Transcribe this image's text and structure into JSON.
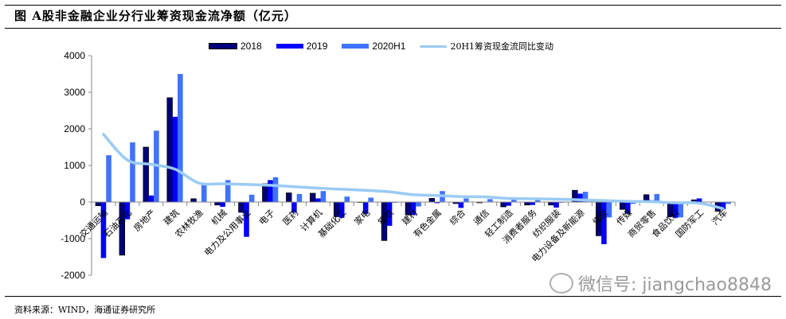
{
  "header": {
    "title": "图  A股非金融企业分行业筹资现金流净额（亿元）"
  },
  "footer": {
    "source": "资料来源：WIND，海通证券研究所"
  },
  "watermark": {
    "text": "微信号: jiangchao8848"
  },
  "colors": {
    "s2018": "#00007A",
    "s2019": "#0000FF",
    "s2020H1": "#3F72FF",
    "line": "#9ACBF5"
  },
  "legend": [
    "2018",
    "2019",
    "2020H1",
    "20H1筹资现金流同比变动"
  ],
  "chart_data": {
    "type": "bar",
    "title": "A股非金融企业分行业筹资现金流净额（亿元）",
    "xlabel": "",
    "ylabel": "",
    "ylim": [
      -2000,
      4000
    ],
    "yticks": [
      -2000,
      -1000,
      0,
      1000,
      2000,
      3000,
      4000
    ],
    "grid": false,
    "legend_position": "top",
    "categories": [
      "交通运输",
      "石油石化",
      "房地产",
      "建筑",
      "农林牧渔",
      "机械",
      "电力及公用事业",
      "电子",
      "医药",
      "计算机",
      "基础化工",
      "家电",
      "钢铁",
      "建材",
      "有色金属",
      "综合",
      "通信",
      "轻工制造",
      "消费者服务",
      "纺织服装",
      "电力设备及新能源",
      "煤炭",
      "传媒",
      "商贸零售",
      "食品饮料",
      "国防军工",
      "汽车"
    ],
    "series": [
      {
        "name": "2018",
        "type": "bar",
        "values": [
          -100,
          -1450,
          1500,
          2850,
          90,
          -80,
          -280,
          500,
          250,
          240,
          -400,
          0,
          -1050,
          -350,
          100,
          -40,
          -20,
          -130,
          -80,
          -80,
          320,
          -920,
          -200,
          200,
          -400,
          60,
          -250
        ]
      },
      {
        "name": "2019",
        "type": "bar",
        "values": [
          -1530,
          -470,
          180,
          2330,
          0,
          -130,
          -950,
          600,
          -290,
          100,
          -430,
          -320,
          -650,
          -350,
          -30,
          -160,
          -10,
          -100,
          -80,
          -150,
          230,
          -1150,
          -320,
          50,
          -430,
          100,
          -200
        ]
      },
      {
        "name": "2020H1",
        "type": "bar",
        "values": [
          1280,
          1630,
          1950,
          3500,
          500,
          600,
          200,
          680,
          220,
          300,
          150,
          120,
          -20,
          -120,
          300,
          100,
          80,
          80,
          100,
          -20,
          280,
          -420,
          -50,
          220,
          -420,
          10,
          -50
        ]
      },
      {
        "name": "20H1筹资现金流同比变动",
        "type": "line",
        "values": [
          1850,
          1150,
          1030,
          900,
          520,
          500,
          480,
          460,
          420,
          380,
          350,
          320,
          280,
          200,
          180,
          150,
          140,
          100,
          90,
          80,
          60,
          40,
          20,
          10,
          -20,
          -30,
          -180
        ]
      }
    ]
  }
}
